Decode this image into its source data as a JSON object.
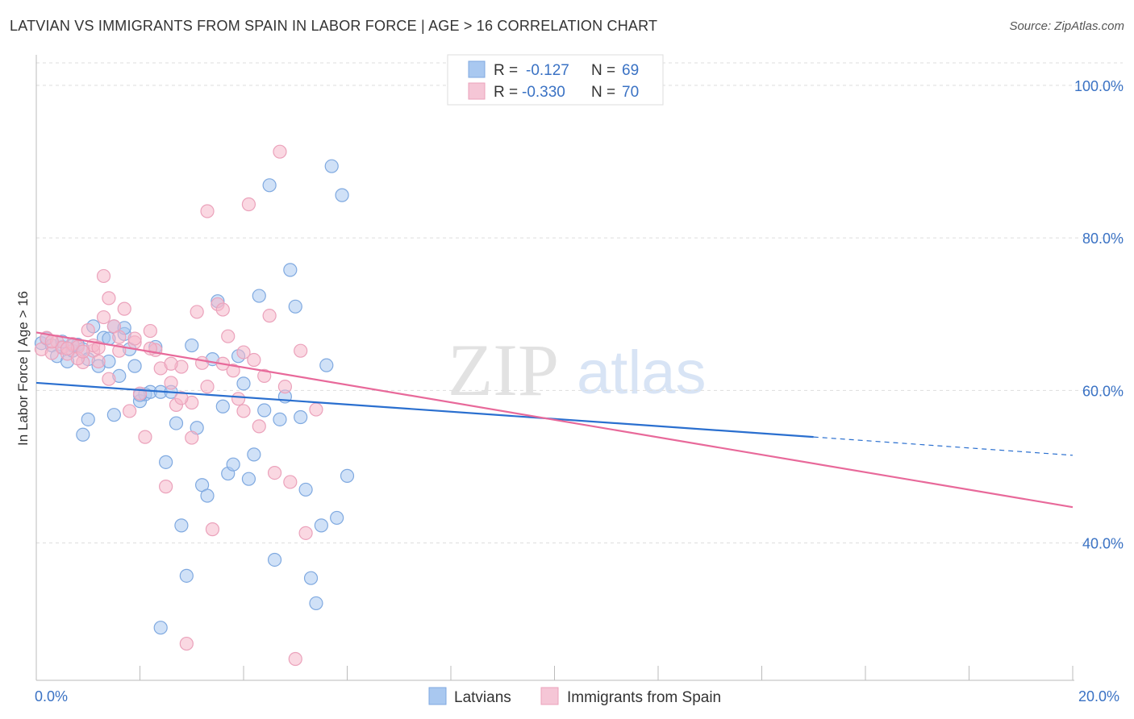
{
  "title": "LATVIAN VS IMMIGRANTS FROM SPAIN IN LABOR FORCE | AGE > 16 CORRELATION CHART",
  "source": "Source: ZipAtlas.com",
  "watermark": {
    "zip": "ZIP",
    "atlas": "atlas"
  },
  "legend": {
    "rows": [
      {
        "r_label": "R =",
        "r_value": "-0.127",
        "n_label": "N =",
        "n_value": "69",
        "color": "#a9c8f0"
      },
      {
        "r_label": "R =",
        "r_value": "-0.330",
        "n_label": "N =",
        "n_value": "70",
        "color": "#f5b8cb"
      }
    ]
  },
  "bottom_legend": [
    "Latvians",
    "Immigrants from Spain"
  ],
  "chart_data": {
    "type": "scatter",
    "title": "LATVIAN VS IMMIGRANTS FROM SPAIN IN LABOR FORCE | AGE > 16 CORRELATION CHART",
    "xlabel": "",
    "ylabel": "In Labor Force | Age > 16",
    "xlim": [
      0,
      20
    ],
    "ylim": [
      22,
      104
    ],
    "x_tick_labels": [
      "0.0%",
      "20.0%"
    ],
    "y_ticks": [
      40,
      60,
      80,
      100
    ],
    "y_tick_labels": [
      "40.0%",
      "60.0%",
      "80.0%",
      "100.0%"
    ],
    "grid": true,
    "legend_position": "top-center",
    "series": [
      {
        "name": "Latvians",
        "color": "#a9c8f0",
        "line_color": "#2a6fcf",
        "trend": {
          "x0": 0,
          "y0": 61.0,
          "x1": 15.0,
          "y1": 53.9,
          "dashed_to_x": 20,
          "dashed_to_y": 51.5
        },
        "points": [
          [
            0.1,
            66.2
          ],
          [
            0.2,
            66.8
          ],
          [
            0.3,
            65.9
          ],
          [
            0.4,
            64.5
          ],
          [
            0.5,
            65.7
          ],
          [
            0.6,
            63.8
          ],
          [
            0.7,
            65.2
          ],
          [
            0.8,
            66.0
          ],
          [
            0.9,
            65.4
          ],
          [
            1.0,
            64.1
          ],
          [
            1.1,
            68.4
          ],
          [
            1.2,
            63.2
          ],
          [
            1.3,
            66.9
          ],
          [
            1.4,
            63.8
          ],
          [
            1.5,
            68.4
          ],
          [
            1.6,
            61.9
          ],
          [
            1.7,
            67.4
          ],
          [
            1.8,
            65.4
          ],
          [
            1.9,
            63.2
          ],
          [
            2.0,
            58.6
          ],
          [
            2.1,
            59.5
          ],
          [
            2.2,
            59.8
          ],
          [
            2.3,
            65.7
          ],
          [
            2.4,
            59.8
          ],
          [
            2.5,
            50.6
          ],
          [
            2.6,
            59.8
          ],
          [
            2.7,
            55.7
          ],
          [
            2.8,
            42.3
          ],
          [
            2.9,
            35.7
          ],
          [
            3.0,
            65.9
          ],
          [
            3.1,
            55.1
          ],
          [
            3.2,
            47.6
          ],
          [
            3.3,
            46.2
          ],
          [
            3.4,
            64.1
          ],
          [
            3.5,
            71.7
          ],
          [
            3.6,
            57.9
          ],
          [
            3.7,
            49.1
          ],
          [
            3.8,
            50.3
          ],
          [
            3.9,
            64.5
          ],
          [
            4.0,
            60.9
          ],
          [
            4.1,
            48.4
          ],
          [
            4.2,
            51.6
          ],
          [
            4.3,
            72.4
          ],
          [
            4.4,
            57.4
          ],
          [
            4.5,
            86.9
          ],
          [
            4.6,
            37.8
          ],
          [
            4.7,
            56.2
          ],
          [
            4.8,
            59.2
          ],
          [
            4.9,
            75.8
          ],
          [
            5.0,
            71.0
          ],
          [
            5.1,
            56.5
          ],
          [
            5.2,
            47.0
          ],
          [
            5.3,
            35.4
          ],
          [
            5.4,
            32.1
          ],
          [
            5.5,
            42.3
          ],
          [
            5.6,
            63.3
          ],
          [
            5.7,
            89.4
          ],
          [
            5.8,
            43.3
          ],
          [
            5.9,
            85.6
          ],
          [
            6.0,
            48.8
          ],
          [
            1.0,
            56.2
          ],
          [
            1.5,
            56.8
          ],
          [
            0.9,
            54.2
          ],
          [
            1.7,
            68.2
          ],
          [
            2.4,
            28.9
          ],
          [
            0.5,
            66.4
          ],
          [
            0.7,
            65.9
          ],
          [
            1.4,
            66.8
          ],
          [
            2.0,
            59.4
          ]
        ]
      },
      {
        "name": "Immigrants from Spain",
        "color": "#f5b8cb",
        "line_color": "#e8699a",
        "trend": {
          "x0": 0,
          "y0": 67.6,
          "x1": 20,
          "y1": 44.7
        },
        "points": [
          [
            0.1,
            65.4
          ],
          [
            0.2,
            66.9
          ],
          [
            0.3,
            64.9
          ],
          [
            0.4,
            66.4
          ],
          [
            0.5,
            65.6
          ],
          [
            0.6,
            64.8
          ],
          [
            0.7,
            66.1
          ],
          [
            0.8,
            65.7
          ],
          [
            0.9,
            63.7
          ],
          [
            1.0,
            67.9
          ],
          [
            1.1,
            65.2
          ],
          [
            1.2,
            63.8
          ],
          [
            1.3,
            69.6
          ],
          [
            1.4,
            72.1
          ],
          [
            1.5,
            68.4
          ],
          [
            1.6,
            65.2
          ],
          [
            1.7,
            70.7
          ],
          [
            1.8,
            57.3
          ],
          [
            1.9,
            66.3
          ],
          [
            2.0,
            59.6
          ],
          [
            2.1,
            53.9
          ],
          [
            2.2,
            67.8
          ],
          [
            2.3,
            65.3
          ],
          [
            2.4,
            62.9
          ],
          [
            2.5,
            47.4
          ],
          [
            2.6,
            61.0
          ],
          [
            2.7,
            58.1
          ],
          [
            2.8,
            63.1
          ],
          [
            2.9,
            26.8
          ],
          [
            3.0,
            53.8
          ],
          [
            3.1,
            70.3
          ],
          [
            3.2,
            63.6
          ],
          [
            3.3,
            83.5
          ],
          [
            3.4,
            41.8
          ],
          [
            3.5,
            71.3
          ],
          [
            3.6,
            70.6
          ],
          [
            3.7,
            67.1
          ],
          [
            3.8,
            62.6
          ],
          [
            3.9,
            58.9
          ],
          [
            4.0,
            57.3
          ],
          [
            4.1,
            84.4
          ],
          [
            4.2,
            64.0
          ],
          [
            4.3,
            55.3
          ],
          [
            4.4,
            61.9
          ],
          [
            4.5,
            69.8
          ],
          [
            4.6,
            49.2
          ],
          [
            4.7,
            91.3
          ],
          [
            4.8,
            60.5
          ],
          [
            4.9,
            48.0
          ],
          [
            5.0,
            24.8
          ],
          [
            5.1,
            65.2
          ],
          [
            5.2,
            41.3
          ],
          [
            1.3,
            75.0
          ],
          [
            0.8,
            64.2
          ],
          [
            1.6,
            67.0
          ],
          [
            2.6,
            63.5
          ],
          [
            1.1,
            65.9
          ],
          [
            0.6,
            65.5
          ],
          [
            1.9,
            66.8
          ],
          [
            3.0,
            58.4
          ],
          [
            3.6,
            63.5
          ],
          [
            2.2,
            65.5
          ],
          [
            1.4,
            61.5
          ],
          [
            4.0,
            65.0
          ],
          [
            5.4,
            57.5
          ],
          [
            0.9,
            65.1
          ],
          [
            1.2,
            65.6
          ],
          [
            3.3,
            60.5
          ],
          [
            2.8,
            59.0
          ],
          [
            0.3,
            66.4
          ]
        ]
      }
    ]
  }
}
